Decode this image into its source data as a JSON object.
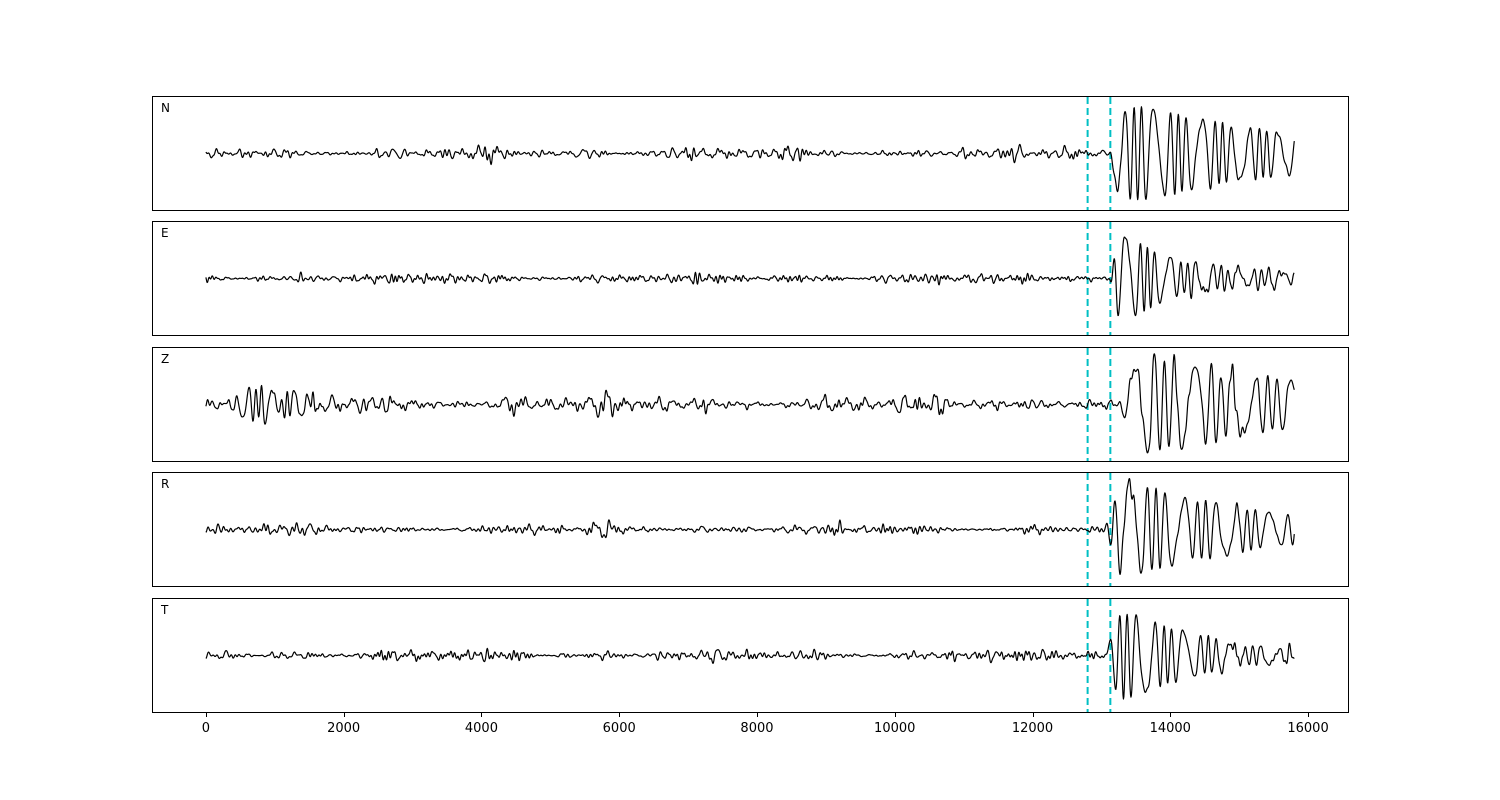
{
  "figure": {
    "background": "#ffffff",
    "waveform_color": "#000000",
    "marker_color": "#00bfc4",
    "axis_color": "#000000"
  },
  "chart_data": {
    "type": "line",
    "title": "",
    "xlabel": "",
    "ylabel": "",
    "legend": null,
    "grid": false,
    "xlim": [
      -768,
      16580
    ],
    "x_ticks": [
      0,
      2000,
      4000,
      6000,
      8000,
      10000,
      12000,
      14000,
      16000
    ],
    "x_tick_labels": [
      "0",
      "2000",
      "4000",
      "6000",
      "8000",
      "10000",
      "12000",
      "14000",
      "16000"
    ],
    "x_data_range": [
      0,
      15800
    ],
    "vlines": [
      12800,
      13130
    ],
    "vline_style": "dashed",
    "panels": [
      {
        "label": "N",
        "seed": 11,
        "noise_amp": 0.14,
        "event": {
          "t0": 13080,
          "amp": 0.95,
          "rise": 140,
          "decay": 1100,
          "period": 165,
          "coda_amp": 0.5,
          "coda_decay": 5200
        }
      },
      {
        "label": "E",
        "seed": 22,
        "noise_amp": 0.1,
        "event": {
          "t0": 13120,
          "amp": 1.25,
          "rise": 90,
          "decay": 500,
          "period": 150,
          "coda_amp": 0.28,
          "coda_decay": 3000
        }
      },
      {
        "label": "Z",
        "seed": 33,
        "noise_amp": 0.18,
        "burst": {
          "t0": 350,
          "amp": 0.45,
          "rise": 250,
          "decay": 900,
          "period": 120
        },
        "event": {
          "t0": 13260,
          "amp": 0.9,
          "rise": 160,
          "decay": 1300,
          "period": 210,
          "coda_amp": 0.5,
          "coda_decay": 5200
        }
      },
      {
        "label": "R",
        "seed": 44,
        "noise_amp": 0.13,
        "event": {
          "t0": 13040,
          "amp": 1.0,
          "rise": 130,
          "decay": 1000,
          "period": 185,
          "coda_amp": 0.45,
          "coda_decay": 3800
        }
      },
      {
        "label": "T",
        "seed": 55,
        "noise_amp": 0.1,
        "event": {
          "t0": 13060,
          "amp": 1.05,
          "rise": 110,
          "decay": 800,
          "period": 165,
          "coda_amp": 0.33,
          "coda_decay": 2600
        }
      }
    ]
  }
}
